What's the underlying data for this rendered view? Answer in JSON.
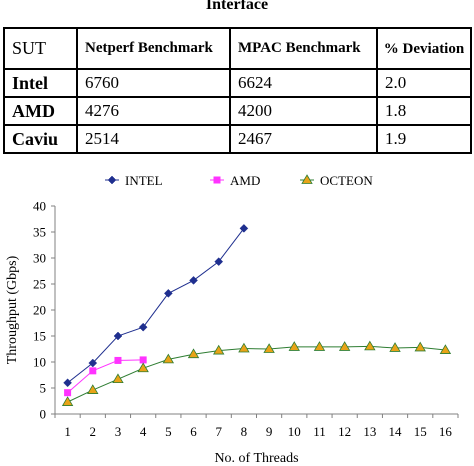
{
  "caption": "Interface",
  "table": {
    "headers": [
      "SUT",
      "Netperf Benchmark",
      "MPAC Benchmark",
      "% Deviation"
    ],
    "rows": [
      [
        "Intel",
        "6760",
        "6624",
        "2.0"
      ],
      [
        "AMD",
        "4276",
        "4200",
        "1.8"
      ],
      [
        "Caviu",
        "2514",
        "2467",
        "1.9"
      ]
    ]
  },
  "chart_data": {
    "type": "line",
    "xlabel": "No. of Threads",
    "ylabel": "Throughput (Gbps)",
    "xlim": [
      1,
      16
    ],
    "ylim": [
      0,
      40
    ],
    "xticks": [
      "1",
      "2",
      "3",
      "4",
      "5",
      "6",
      "7",
      "8",
      "9",
      "10",
      "11",
      "12",
      "13",
      "14",
      "15",
      "16"
    ],
    "yticks": [
      "0",
      "5",
      "10",
      "15",
      "20",
      "25",
      "30",
      "35",
      "40"
    ],
    "legend_position": "top",
    "grid": false,
    "series": [
      {
        "name": "INTEL",
        "color": "#1f2f8f",
        "marker": "diamond",
        "x": [
          1,
          2,
          3,
          4,
          5,
          6,
          7,
          8
        ],
        "values": [
          6.0,
          9.8,
          15.0,
          16.7,
          23.2,
          25.7,
          29.3,
          35.7
        ]
      },
      {
        "name": "AMD",
        "color": "#ff33ff",
        "marker": "square",
        "x": [
          1,
          2,
          3,
          4
        ],
        "values": [
          4.1,
          8.3,
          10.3,
          10.4
        ]
      },
      {
        "name": "OCTEON",
        "color": "#2e7d32",
        "marker": "triangle",
        "marker_fill": "#e8a317",
        "x": [
          1,
          2,
          3,
          4,
          5,
          6,
          7,
          8,
          9,
          10,
          11,
          12,
          13,
          14,
          15,
          16
        ],
        "values": [
          2.3,
          4.6,
          6.7,
          8.8,
          10.5,
          11.5,
          12.2,
          12.6,
          12.5,
          12.9,
          12.9,
          12.9,
          13.0,
          12.7,
          12.8,
          12.3
        ]
      }
    ]
  }
}
